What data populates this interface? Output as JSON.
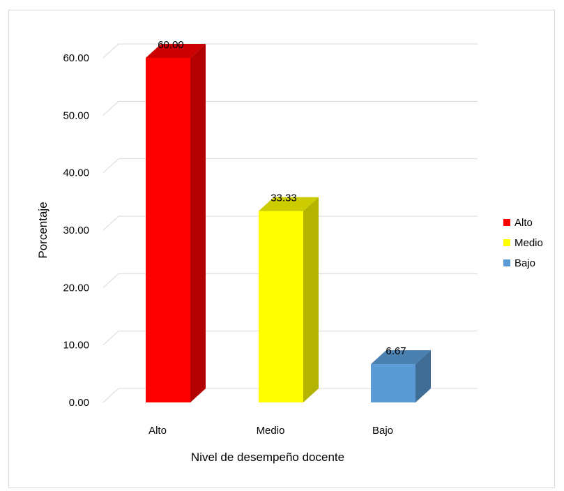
{
  "chart_data": {
    "type": "bar",
    "style": "3d-column",
    "categories": [
      "Alto",
      "Medio",
      "Bajo"
    ],
    "values": [
      60.0,
      33.33,
      6.67
    ],
    "data_labels": [
      "60.00",
      "33.33",
      "6.67"
    ],
    "colors": [
      "#ff0000",
      "#ffff00",
      "#5b9bd5"
    ],
    "side_colors": [
      "#b30000",
      "#b3b300",
      "#3f6d96"
    ],
    "top_colors": [
      "#cc0000",
      "#cccc00",
      "#4a80b0"
    ],
    "title": "",
    "xlabel": "Nivel de desempeño docente",
    "ylabel": "Porcentaje",
    "ylim": [
      0,
      60
    ],
    "yticks": [
      "0.00",
      "10.00",
      "20.00",
      "30.00",
      "40.00",
      "50.00",
      "60.00"
    ],
    "grid": true,
    "legend": {
      "placement": "right",
      "entries": [
        {
          "name": "Alto",
          "color": "#ff0000"
        },
        {
          "name": "Medio",
          "color": "#ffff00"
        },
        {
          "name": "Bajo",
          "color": "#5b9bd5"
        }
      ]
    }
  }
}
